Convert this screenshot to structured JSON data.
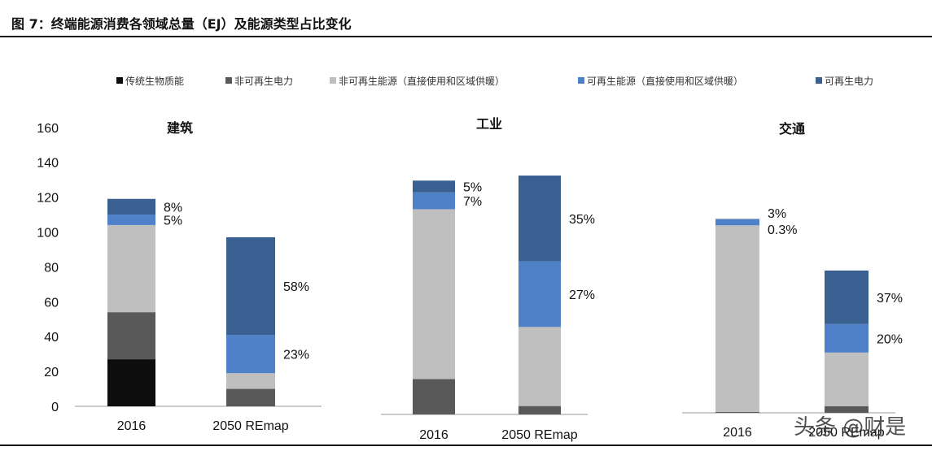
{
  "figure_title": "图 7：终端能源消费各领域总量（EJ）及能源类型占比变化",
  "watermark": "头条 @财是",
  "colors": {
    "traditional_biomass": "#0d0d0d",
    "nonrenewable_power": "#595959",
    "nonrenewable_direct": "#bfbfbf",
    "renewable_direct": "#4f81c8",
    "renewable_power": "#3a5f91"
  },
  "chart_data": {
    "type": "bar",
    "stacked": true,
    "legend_position": "top",
    "legend": [
      {
        "name": "传统生物质能",
        "color_key": "traditional_biomass"
      },
      {
        "name": "非可再生电力",
        "color_key": "nonrenewable_power"
      },
      {
        "name": "非可再生能源（直接使用和区域供暖）",
        "color_key": "nonrenewable_direct"
      },
      {
        "name": "可再生能源（直接使用和区域供暖）",
        "color_key": "renewable_direct"
      },
      {
        "name": "可再生电力",
        "color_key": "renewable_power"
      }
    ],
    "ylim": [
      0,
      160
    ],
    "yticks": [
      "0",
      "20",
      "40",
      "60",
      "80",
      "100",
      "120",
      "140",
      "160"
    ],
    "panels": [
      {
        "title": "建筑",
        "categories": [
          "2016",
          "2050 REmap"
        ],
        "series": [
          {
            "name": "传统生物质能",
            "values": [
              27,
              0
            ]
          },
          {
            "name": "非可再生电力",
            "values": [
              27,
              10
            ]
          },
          {
            "name": "非可再生能源（直接使用和区域供暖）",
            "values": [
              50,
              9
            ]
          },
          {
            "name": "可再生能源（直接使用和区域供暖）",
            "values": [
              6,
              22
            ]
          },
          {
            "name": "可再生电力",
            "values": [
              9,
              56
            ]
          }
        ],
        "labels": [
          {
            "bar": 0,
            "series": 4,
            "text": "8%"
          },
          {
            "bar": 0,
            "series": 3,
            "text": "5%"
          },
          {
            "bar": 1,
            "series": 4,
            "text": "58%"
          },
          {
            "bar": 1,
            "series": 3,
            "text": "23%"
          }
        ]
      },
      {
        "title": "工业",
        "categories": [
          "2016",
          "2050 REmap"
        ],
        "series": [
          {
            "name": "传统生物质能",
            "values": [
              0,
              0
            ]
          },
          {
            "name": "非可再生电力",
            "values": [
              21,
              5
            ]
          },
          {
            "name": "非可再生能源（直接使用和区域供暖）",
            "values": [
              101,
              47
            ]
          },
          {
            "name": "可再生能源（直接使用和区域供暖）",
            "values": [
              10,
              39
            ]
          },
          {
            "name": "可再生电力",
            "values": [
              7,
              51
            ]
          }
        ],
        "labels": [
          {
            "bar": 0,
            "series": 4,
            "text": "5%"
          },
          {
            "bar": 0,
            "series": 3,
            "text": "7%"
          },
          {
            "bar": 1,
            "series": 4,
            "text": "35%"
          },
          {
            "bar": 1,
            "series": 3,
            "text": "27%"
          }
        ]
      },
      {
        "title": "交通",
        "categories": [
          "2016",
          "2050 REmap"
        ],
        "series": [
          {
            "name": "传统生物质能",
            "values": [
              0,
              0
            ]
          },
          {
            "name": "非可再生电力",
            "values": [
              0.5,
              4
            ]
          },
          {
            "name": "非可再生能源（直接使用和区域供暖）",
            "values": [
              111.5,
              32
            ]
          },
          {
            "name": "可再生能源（直接使用和区域供暖）",
            "values": [
              3.5,
              17
            ]
          },
          {
            "name": "可再生电力",
            "values": [
              0.3,
              32
            ]
          }
        ],
        "labels": [
          {
            "bar": 0,
            "series": 3,
            "text": "3%",
            "pos": "upper"
          },
          {
            "bar": 0,
            "series": 4,
            "text": "0.3%",
            "pos": "lower"
          },
          {
            "bar": 1,
            "series": 4,
            "text": "37%"
          },
          {
            "bar": 1,
            "series": 3,
            "text": "20%"
          }
        ]
      }
    ]
  }
}
